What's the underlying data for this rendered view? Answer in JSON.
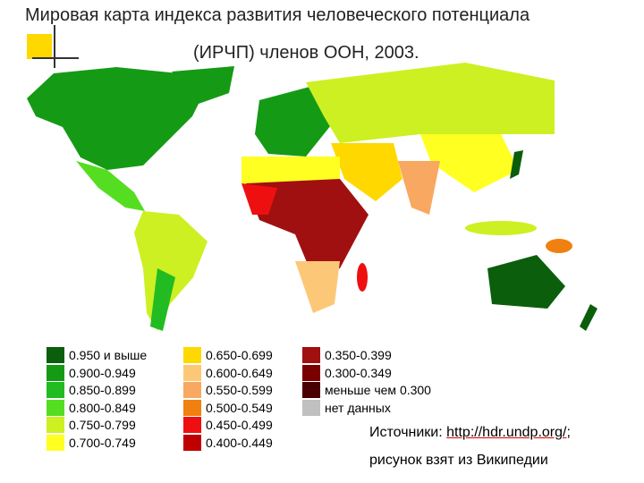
{
  "header": {
    "title_line1": "Мировая карта индекса развития человеческого потенциала",
    "title_line2": "(ИРЧП) членов ООН, 2003."
  },
  "legend": [
    {
      "label": "0.950 и выше",
      "color": "#0b5e0b"
    },
    {
      "label": "0.900-0.949",
      "color": "#159a15"
    },
    {
      "label": "0.850-0.899",
      "color": "#22bb22"
    },
    {
      "label": "0.800-0.849",
      "color": "#55dd22"
    },
    {
      "label": "0.750-0.799",
      "color": "#ccf022"
    },
    {
      "label": "0.700-0.749",
      "color": "#ffff22"
    },
    {
      "label": "0.650-0.699",
      "color": "#ffd800"
    },
    {
      "label": "0.600-0.649",
      "color": "#fcc878"
    },
    {
      "label": "0.550-0.599",
      "color": "#f8a860"
    },
    {
      "label": "0.500-0.549",
      "color": "#f08010"
    },
    {
      "label": "0.450-0.499",
      "color": "#ee1010"
    },
    {
      "label": "0.400-0.449",
      "color": "#c00000"
    },
    {
      "label": "0.350-0.399",
      "color": "#a01010"
    },
    {
      "label": "0.300-0.349",
      "color": "#7a0000"
    },
    {
      "label": "меньше чем 0.300",
      "color": "#4a0000"
    },
    {
      "label": "нет данных",
      "color": "#c0c0c0"
    }
  ],
  "source": {
    "prefix": "Источники: ",
    "link": "http://hdr.undp.org/",
    "suffix": ";",
    "line2": "рисунок взят из Википедии"
  }
}
